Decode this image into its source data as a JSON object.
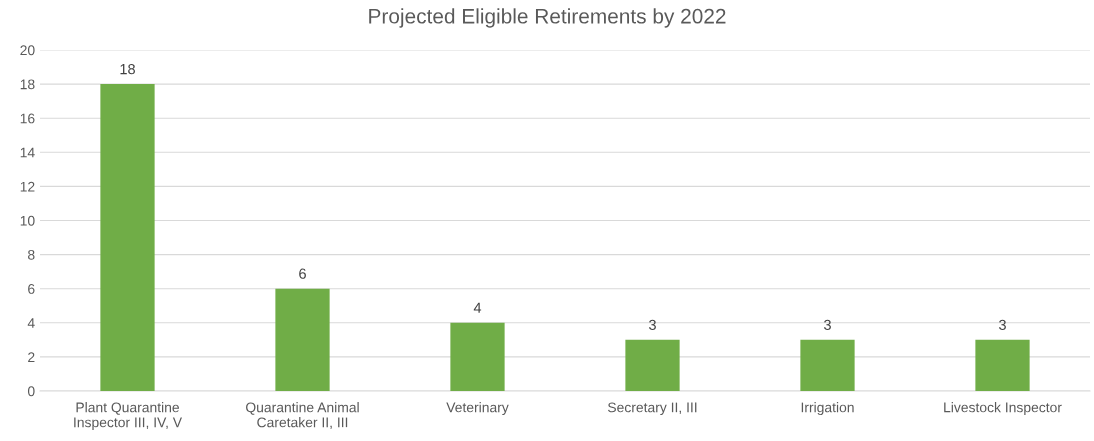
{
  "chart_data": {
    "type": "bar",
    "title": "Projected Eligible Retirements by 2022",
    "categories": [
      "Plant Quarantine Inspector III, IV, V",
      "Quarantine Animal Caretaker II, III",
      "Veterinary",
      "Secretary II, III",
      "Irrigation",
      "Livestock Inspector"
    ],
    "values": [
      18,
      6,
      4,
      3,
      3,
      3
    ],
    "color": "#70ad47",
    "ylim": [
      0,
      20
    ],
    "yticks": [
      0,
      2,
      4,
      6,
      8,
      10,
      12,
      14,
      16,
      18,
      20
    ],
    "grid": "y",
    "data_labels": true,
    "legend": false
  }
}
